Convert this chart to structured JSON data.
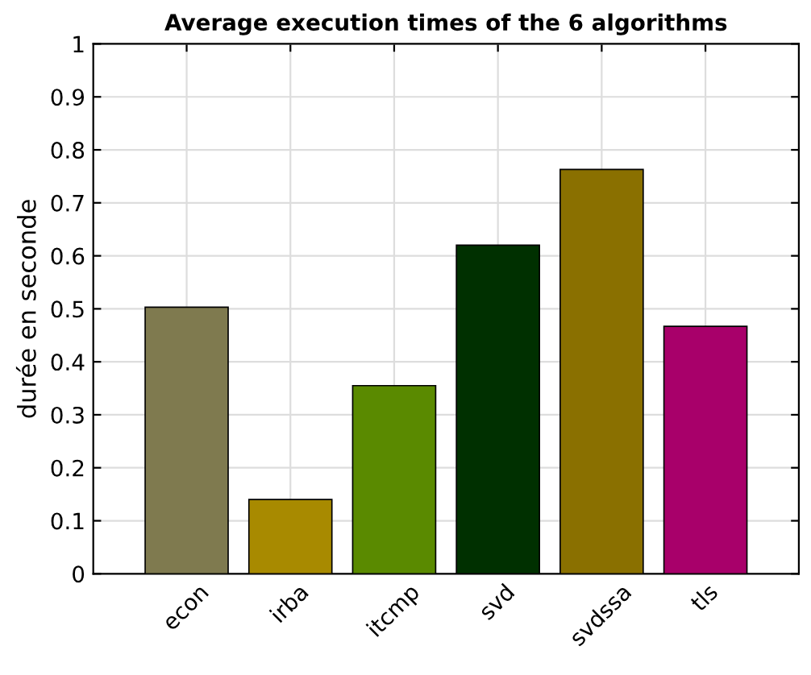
{
  "chart_data": {
    "type": "bar",
    "title": "Average execution times of the 6 algorithms",
    "ylabel": "durée en seconde",
    "categories": [
      "econ",
      "irba",
      "itcmp",
      "svd",
      "svdssa",
      "tls"
    ],
    "values": [
      0.503,
      0.14,
      0.355,
      0.62,
      0.763,
      0.467
    ],
    "colors": [
      "#7f7a4f",
      "#a88a00",
      "#5a8a00",
      "#003000",
      "#8a7000",
      "#a8006a"
    ],
    "ylim": [
      0,
      1
    ],
    "yticks": [
      0,
      0.1,
      0.2,
      0.3,
      0.4,
      0.5,
      0.6,
      0.7,
      0.8,
      0.9,
      1
    ],
    "grid": true
  }
}
